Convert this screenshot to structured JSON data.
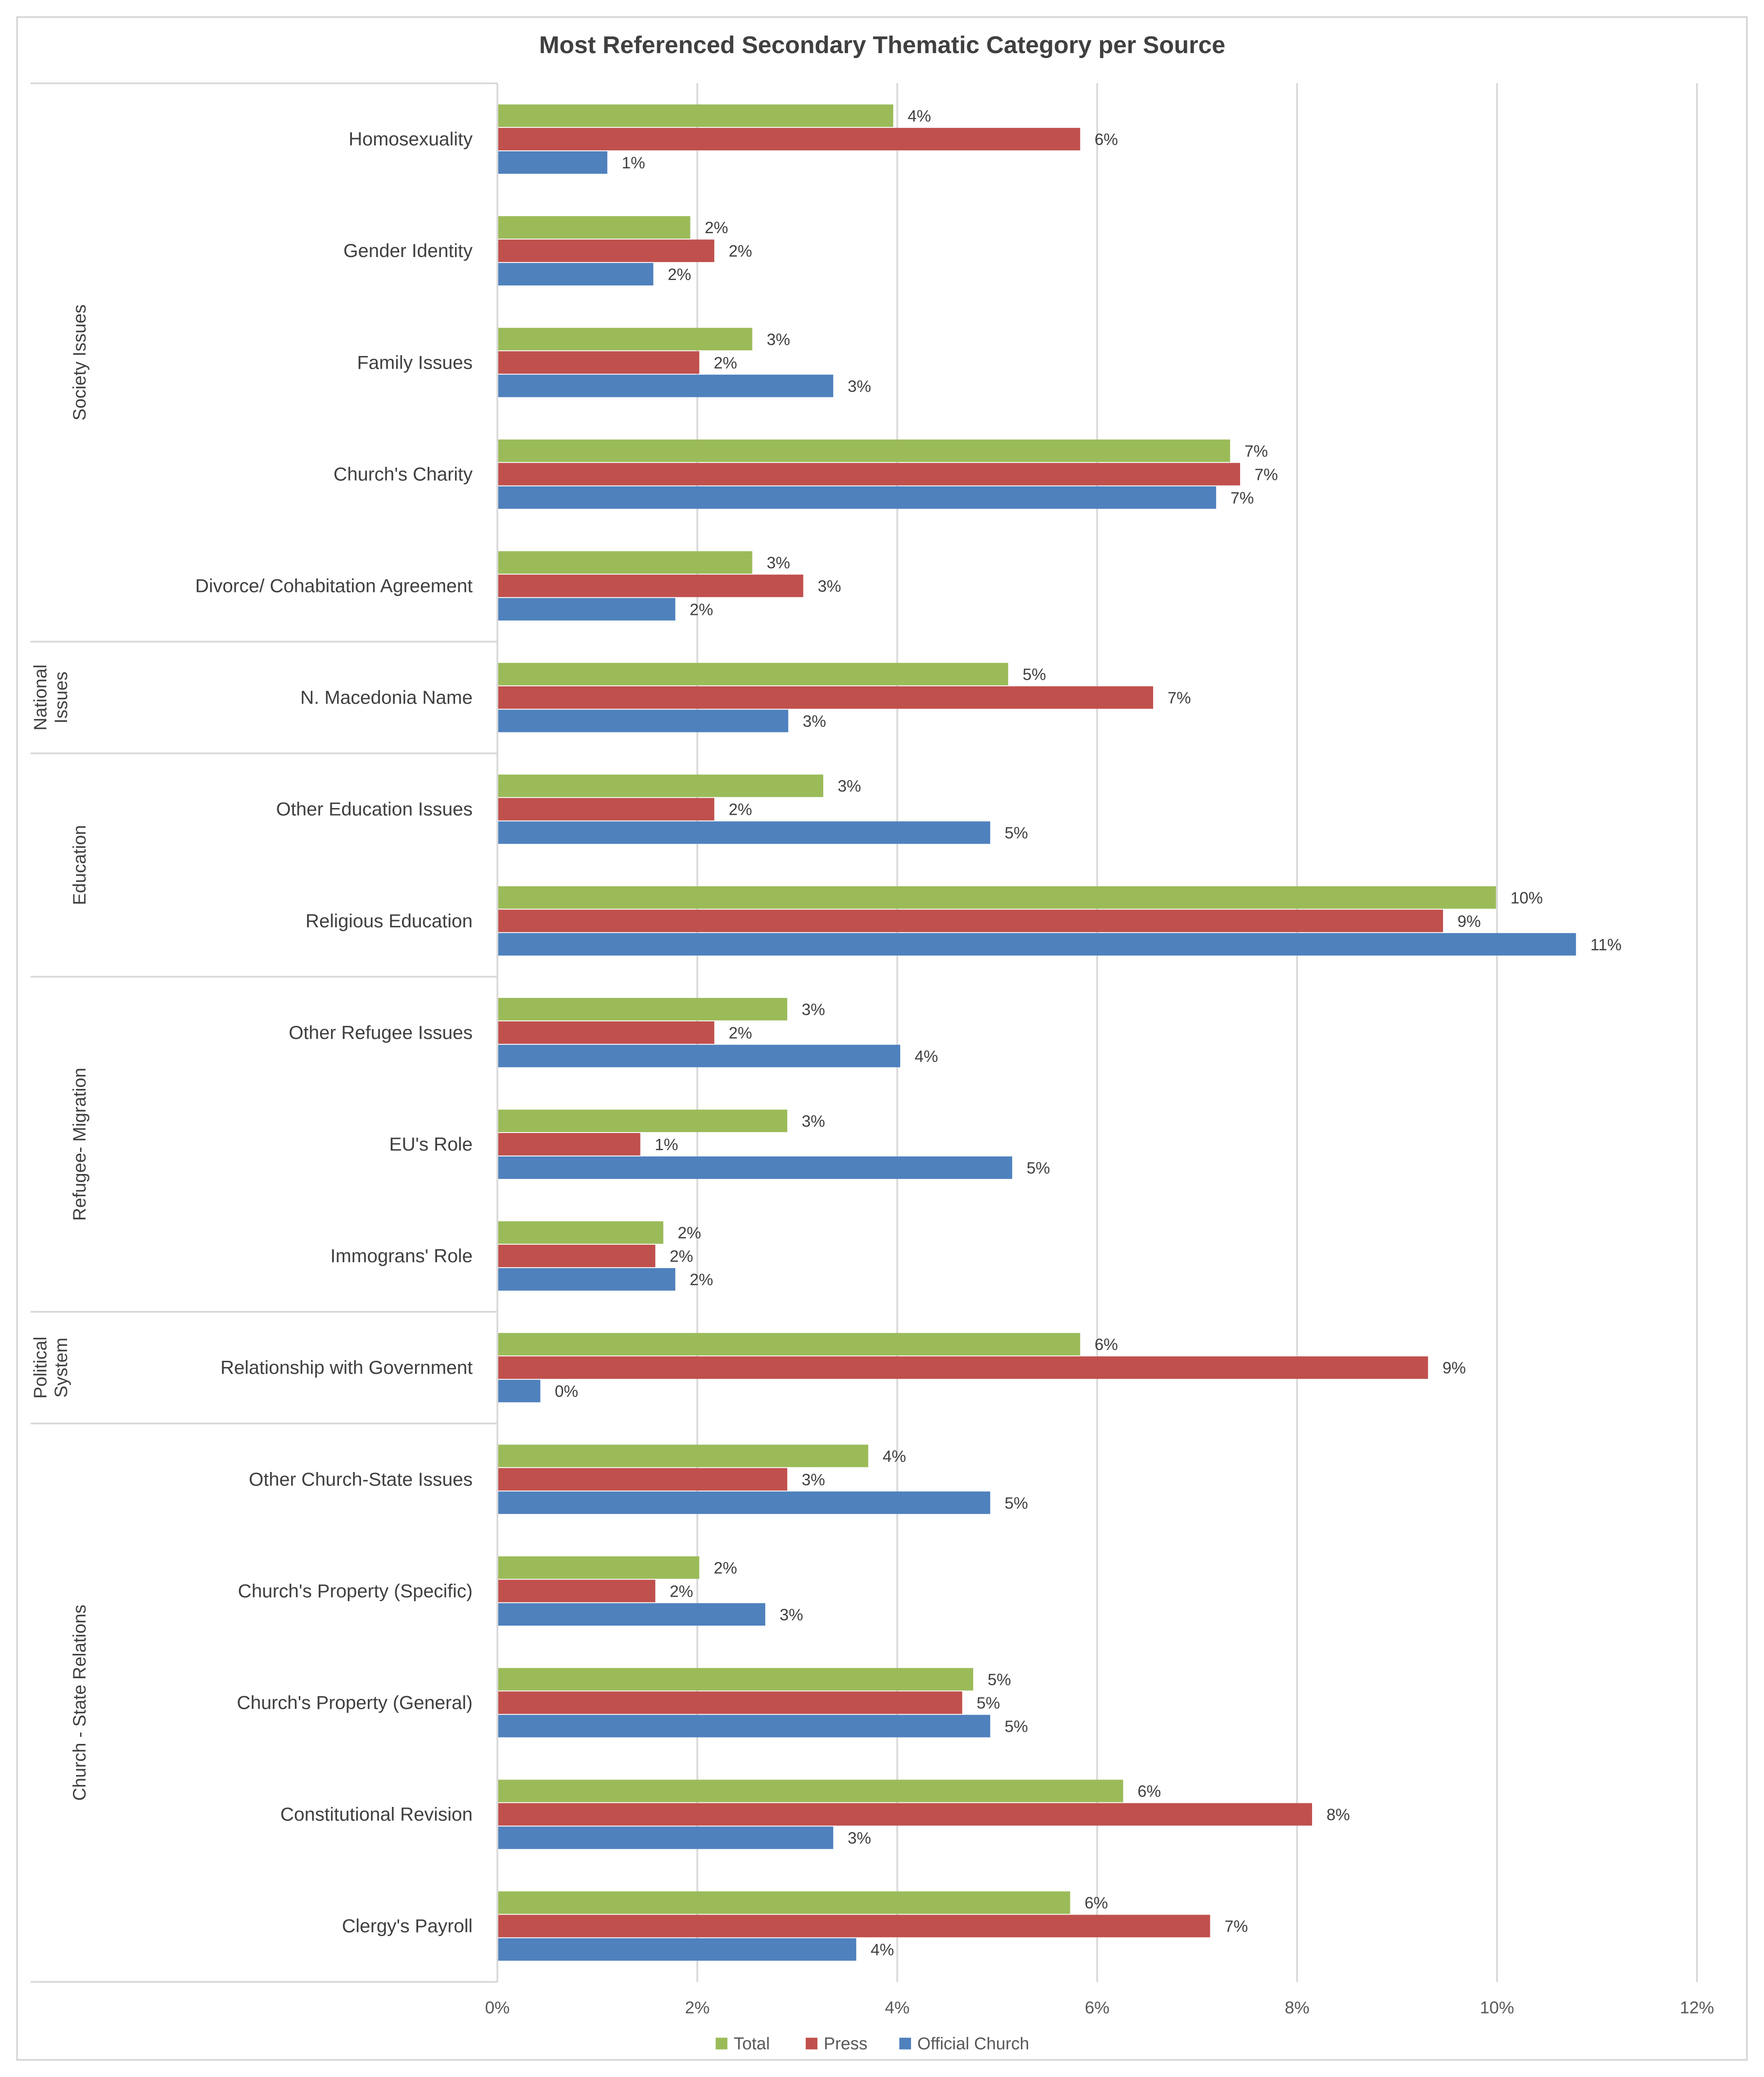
{
  "chart_data": {
    "type": "bar",
    "orientation": "horizontal",
    "title": "Most Referenced Secondary Thematic Category per Source",
    "xlim": [
      0,
      12
    ],
    "x_ticks": [
      "0%",
      "2%",
      "4%",
      "6%",
      "8%",
      "10%",
      "12%"
    ],
    "grid": true,
    "legend_position": "bottom",
    "series": [
      {
        "name": "Total",
        "color": "#9BBB59"
      },
      {
        "name": "Press",
        "color": "#C0504D"
      },
      {
        "name": "Official Church",
        "color": "#4F81BD"
      }
    ],
    "groups": [
      {
        "name": "Society Issues",
        "categories": [
          {
            "label": "Homosexuality",
            "values": [
              3.96,
              5.83,
              1.1
            ],
            "labels": [
              "4%",
              "6%",
              "1%"
            ]
          },
          {
            "label": "Gender Identity",
            "values": [
              1.93,
              2.17,
              1.56
            ],
            "labels": [
              "2%",
              "2%",
              "2%"
            ]
          },
          {
            "label": "Family Issues",
            "values": [
              2.55,
              2.02,
              3.36
            ],
            "labels": [
              "3%",
              "2%",
              "3%"
            ]
          },
          {
            "label": "Church's Charity",
            "values": [
              7.33,
              7.43,
              7.19
            ],
            "labels": [
              "7%",
              "7%",
              "7%"
            ]
          },
          {
            "label": "Divorce/ Cohabitation Agreement",
            "values": [
              2.55,
              3.06,
              1.78
            ],
            "labels": [
              "3%",
              "3%",
              "2%"
            ]
          }
        ]
      },
      {
        "name": "National Issues",
        "categories": [
          {
            "label": "N. Macedonia Name",
            "values": [
              5.11,
              6.56,
              2.91
            ],
            "labels": [
              "5%",
              "7%",
              "3%"
            ]
          }
        ]
      },
      {
        "name": "Education",
        "categories": [
          {
            "label": "Other Education Issues",
            "values": [
              3.26,
              2.17,
              4.93
            ],
            "labels": [
              "3%",
              "2%",
              "5%"
            ]
          },
          {
            "label": "Religious Education",
            "values": [
              9.99,
              9.46,
              10.79
            ],
            "labels": [
              "10%",
              "9%",
              "11%"
            ]
          }
        ]
      },
      {
        "name": "Refugee- Migration",
        "categories": [
          {
            "label": "Other Refugee Issues",
            "values": [
              2.9,
              2.17,
              4.03
            ],
            "labels": [
              "3%",
              "2%",
              "4%"
            ]
          },
          {
            "label": "EU's Role",
            "values": [
              2.9,
              1.43,
              5.15
            ],
            "labels": [
              "3%",
              "1%",
              "5%"
            ]
          },
          {
            "label": "Immograns' Role",
            "values": [
              1.66,
              1.58,
              1.78
            ],
            "labels": [
              "2%",
              "2%",
              "2%"
            ]
          }
        ]
      },
      {
        "name": "Political System",
        "categories": [
          {
            "label": "Relationship with Government",
            "values": [
              5.83,
              9.31,
              0.43
            ],
            "labels": [
              "6%",
              "9%",
              "0%"
            ]
          }
        ]
      },
      {
        "name": "Church - State Relations",
        "categories": [
          {
            "label": "Other Church-State Issues",
            "values": [
              3.71,
              2.9,
              4.93
            ],
            "labels": [
              "4%",
              "3%",
              "5%"
            ]
          },
          {
            "label": "Church's Property (Specific)",
            "values": [
              2.02,
              1.58,
              2.68
            ],
            "labels": [
              "2%",
              "2%",
              "3%"
            ]
          },
          {
            "label": "Church's Property (General)",
            "values": [
              4.76,
              4.65,
              4.93
            ],
            "labels": [
              "5%",
              "5%",
              "5%"
            ]
          },
          {
            "label": "Constitutional Revision",
            "values": [
              6.26,
              8.15,
              3.36
            ],
            "labels": [
              "6%",
              "8%",
              "3%"
            ]
          },
          {
            "label": "Clergy's Payroll",
            "values": [
              5.73,
              7.13,
              3.59
            ],
            "labels": [
              "6%",
              "7%",
              "4%"
            ]
          }
        ]
      }
    ]
  }
}
